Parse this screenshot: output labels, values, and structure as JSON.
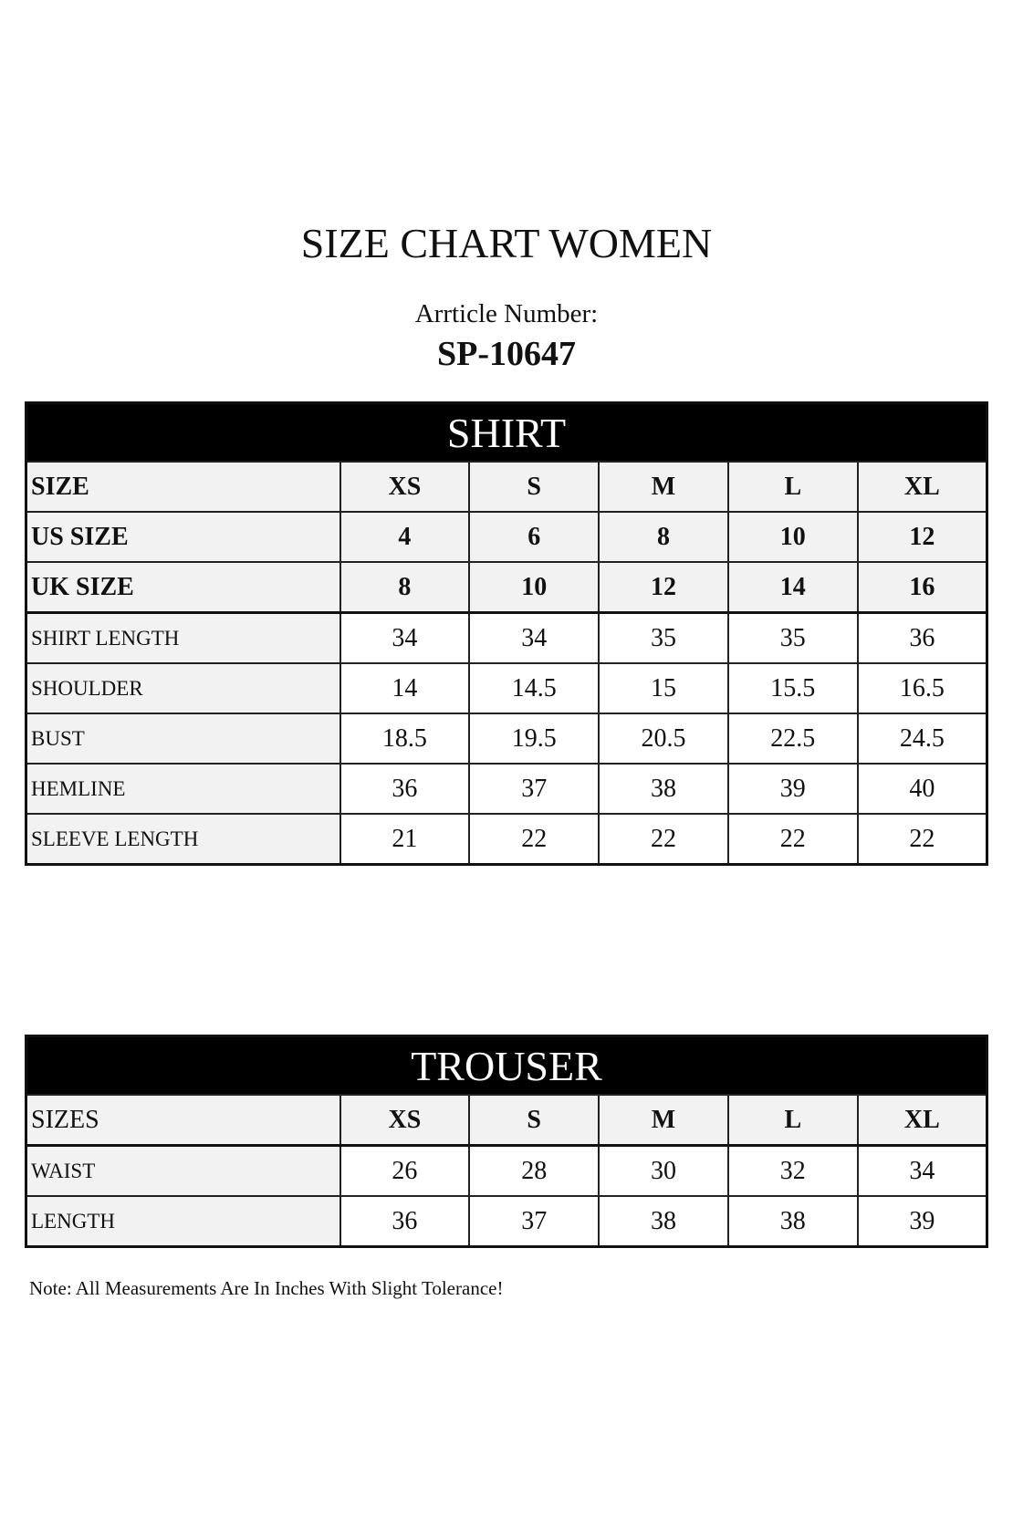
{
  "title": "SIZE CHART WOMEN",
  "article_label": "Arrticle Number:",
  "article_number": "SP-10647",
  "shirt": {
    "heading": "SHIRT",
    "size_rows": [
      {
        "label": "SIZE",
        "values": [
          "XS",
          "S",
          "M",
          "L",
          "XL"
        ]
      },
      {
        "label": "US SIZE",
        "values": [
          "4",
          "6",
          "8",
          "10",
          "12"
        ]
      },
      {
        "label": "UK SIZE",
        "values": [
          "8",
          "10",
          "12",
          "14",
          "16"
        ]
      }
    ],
    "rows": [
      {
        "label": "SHIRT LENGTH",
        "values": [
          "34",
          "34",
          "35",
          "35",
          "36"
        ]
      },
      {
        "label": "SHOULDER",
        "values": [
          "14",
          "14.5",
          "15",
          "15.5",
          "16.5"
        ]
      },
      {
        "label": "BUST",
        "values": [
          "18.5",
          "19.5",
          "20.5",
          "22.5",
          "24.5"
        ]
      },
      {
        "label": "HEMLINE",
        "values": [
          "36",
          "37",
          "38",
          "39",
          "40"
        ]
      },
      {
        "label": "SLEEVE LENGTH",
        "values": [
          "21",
          "22",
          "22",
          "22",
          "22"
        ]
      }
    ]
  },
  "trouser": {
    "heading": "TROUSER",
    "size_row": {
      "label": "SIZES",
      "values": [
        "XS",
        "S",
        "M",
        "L",
        "XL"
      ]
    },
    "rows": [
      {
        "label": "WAIST",
        "values": [
          "26",
          "28",
          "30",
          "32",
          "34"
        ]
      },
      {
        "label": "LENGTH",
        "values": [
          "36",
          "37",
          "38",
          "38",
          "39"
        ]
      }
    ]
  },
  "note": "Note: All Measurements Are In Inches With Slight Tolerance!"
}
